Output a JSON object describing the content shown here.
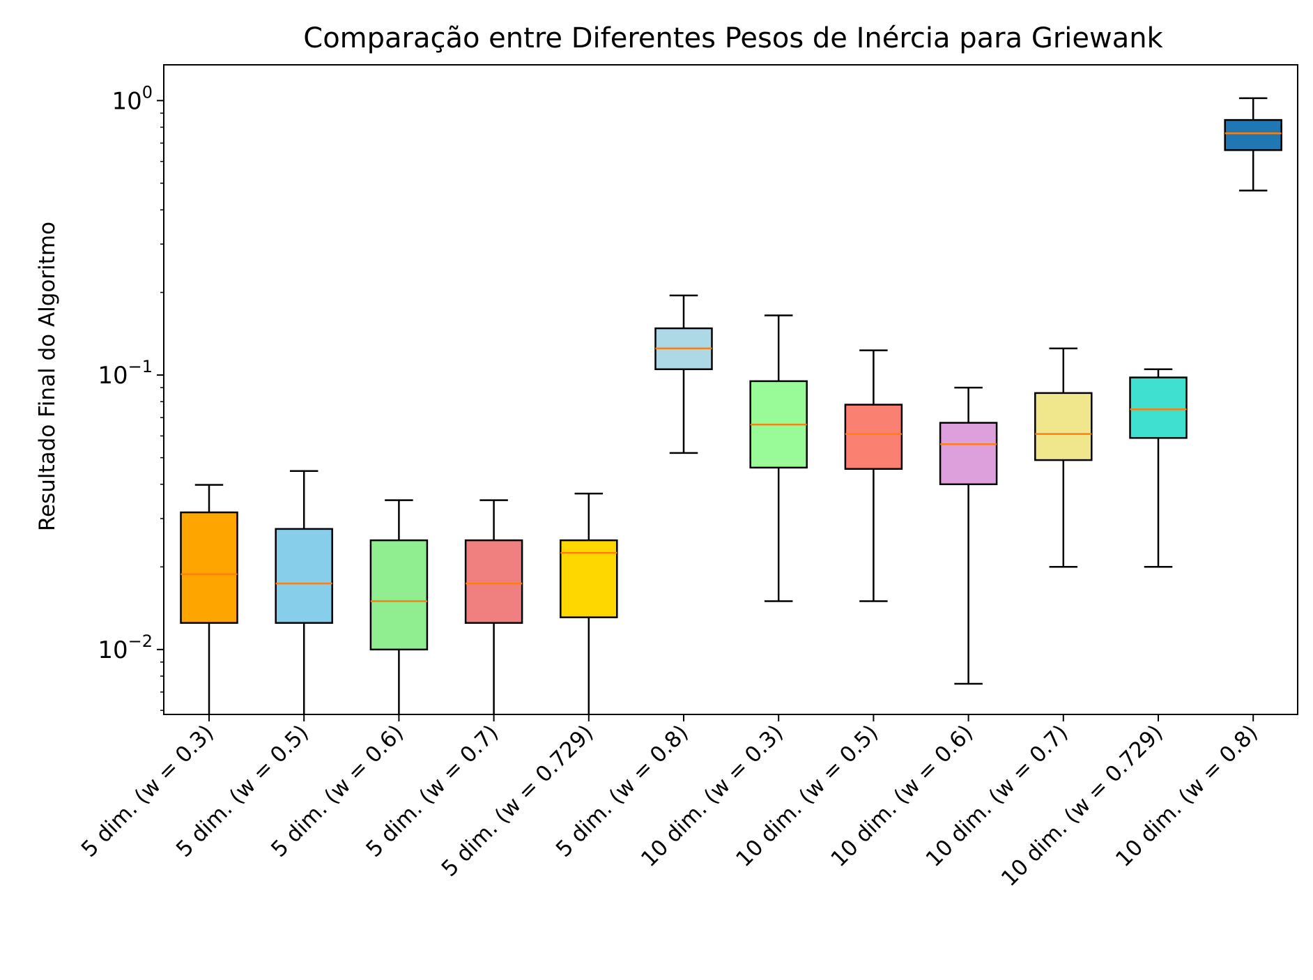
{
  "chart_data": {
    "type": "boxplot",
    "title": "Comparação entre Diferentes Pesos de Inércia para Griewank",
    "xlabel": "",
    "ylabel": "Resultado Final do Algoritmo",
    "yscale": "log",
    "ylim": [
      0.0058,
      1.35
    ],
    "yticks": [
      {
        "value": 1,
        "base": "10",
        "exp": "0"
      },
      {
        "value": 0.1,
        "base": "10",
        "exp": "−1"
      },
      {
        "value": 0.01,
        "base": "10",
        "exp": "−2"
      }
    ],
    "grid": false,
    "median_color": "#ff7f0e",
    "categories": [
      "5 dim. (w = 0.3)",
      "5 dim. (w = 0.5)",
      "5 dim. (w = 0.6)",
      "5 dim. (w = 0.7)",
      "5 dim. (w = 0.729)",
      "5 dim. (w = 0.8)",
      "10 dim. (w = 0.3)",
      "10 dim. (w = 0.5)",
      "10 dim. (w = 0.6)",
      "10 dim. (w = 0.7)",
      "10 dim. (w = 0.729)",
      "10 dim. (w = 0.8)"
    ],
    "boxes": [
      {
        "whislo": 0.005,
        "q1": 0.0125,
        "med": 0.0188,
        "q3": 0.0316,
        "whishi": 0.0398,
        "color": "#ffa500"
      },
      {
        "whislo": 0.005,
        "q1": 0.0125,
        "med": 0.0174,
        "q3": 0.0275,
        "whishi": 0.0447,
        "color": "#87ceeb"
      },
      {
        "whislo": 0.005,
        "q1": 0.01,
        "med": 0.015,
        "q3": 0.025,
        "whishi": 0.035,
        "color": "#90ee90"
      },
      {
        "whislo": 0.005,
        "q1": 0.0125,
        "med": 0.0174,
        "q3": 0.025,
        "whishi": 0.035,
        "color": "#f08080"
      },
      {
        "whislo": 0.005,
        "q1": 0.0131,
        "med": 0.0225,
        "q3": 0.025,
        "whishi": 0.037,
        "color": "#ffd700"
      },
      {
        "whislo": 0.052,
        "q1": 0.105,
        "med": 0.125,
        "q3": 0.148,
        "whishi": 0.195,
        "color": "#add8e6"
      },
      {
        "whislo": 0.015,
        "q1": 0.046,
        "med": 0.066,
        "q3": 0.095,
        "whishi": 0.165,
        "color": "#98fb98"
      },
      {
        "whislo": 0.015,
        "q1": 0.0455,
        "med": 0.061,
        "q3": 0.078,
        "whishi": 0.123,
        "color": "#fa8072"
      },
      {
        "whislo": 0.0075,
        "q1": 0.04,
        "med": 0.056,
        "q3": 0.067,
        "whishi": 0.09,
        "color": "#dda0dd"
      },
      {
        "whislo": 0.02,
        "q1": 0.049,
        "med": 0.061,
        "q3": 0.086,
        "whishi": 0.125,
        "color": "#f0e68c"
      },
      {
        "whislo": 0.02,
        "q1": 0.059,
        "med": 0.075,
        "q3": 0.098,
        "whishi": 0.105,
        "color": "#40e0d0"
      },
      {
        "whislo": 0.47,
        "q1": 0.66,
        "med": 0.76,
        "q3": 0.85,
        "whishi": 1.02,
        "color": "#1f77b4"
      }
    ]
  }
}
